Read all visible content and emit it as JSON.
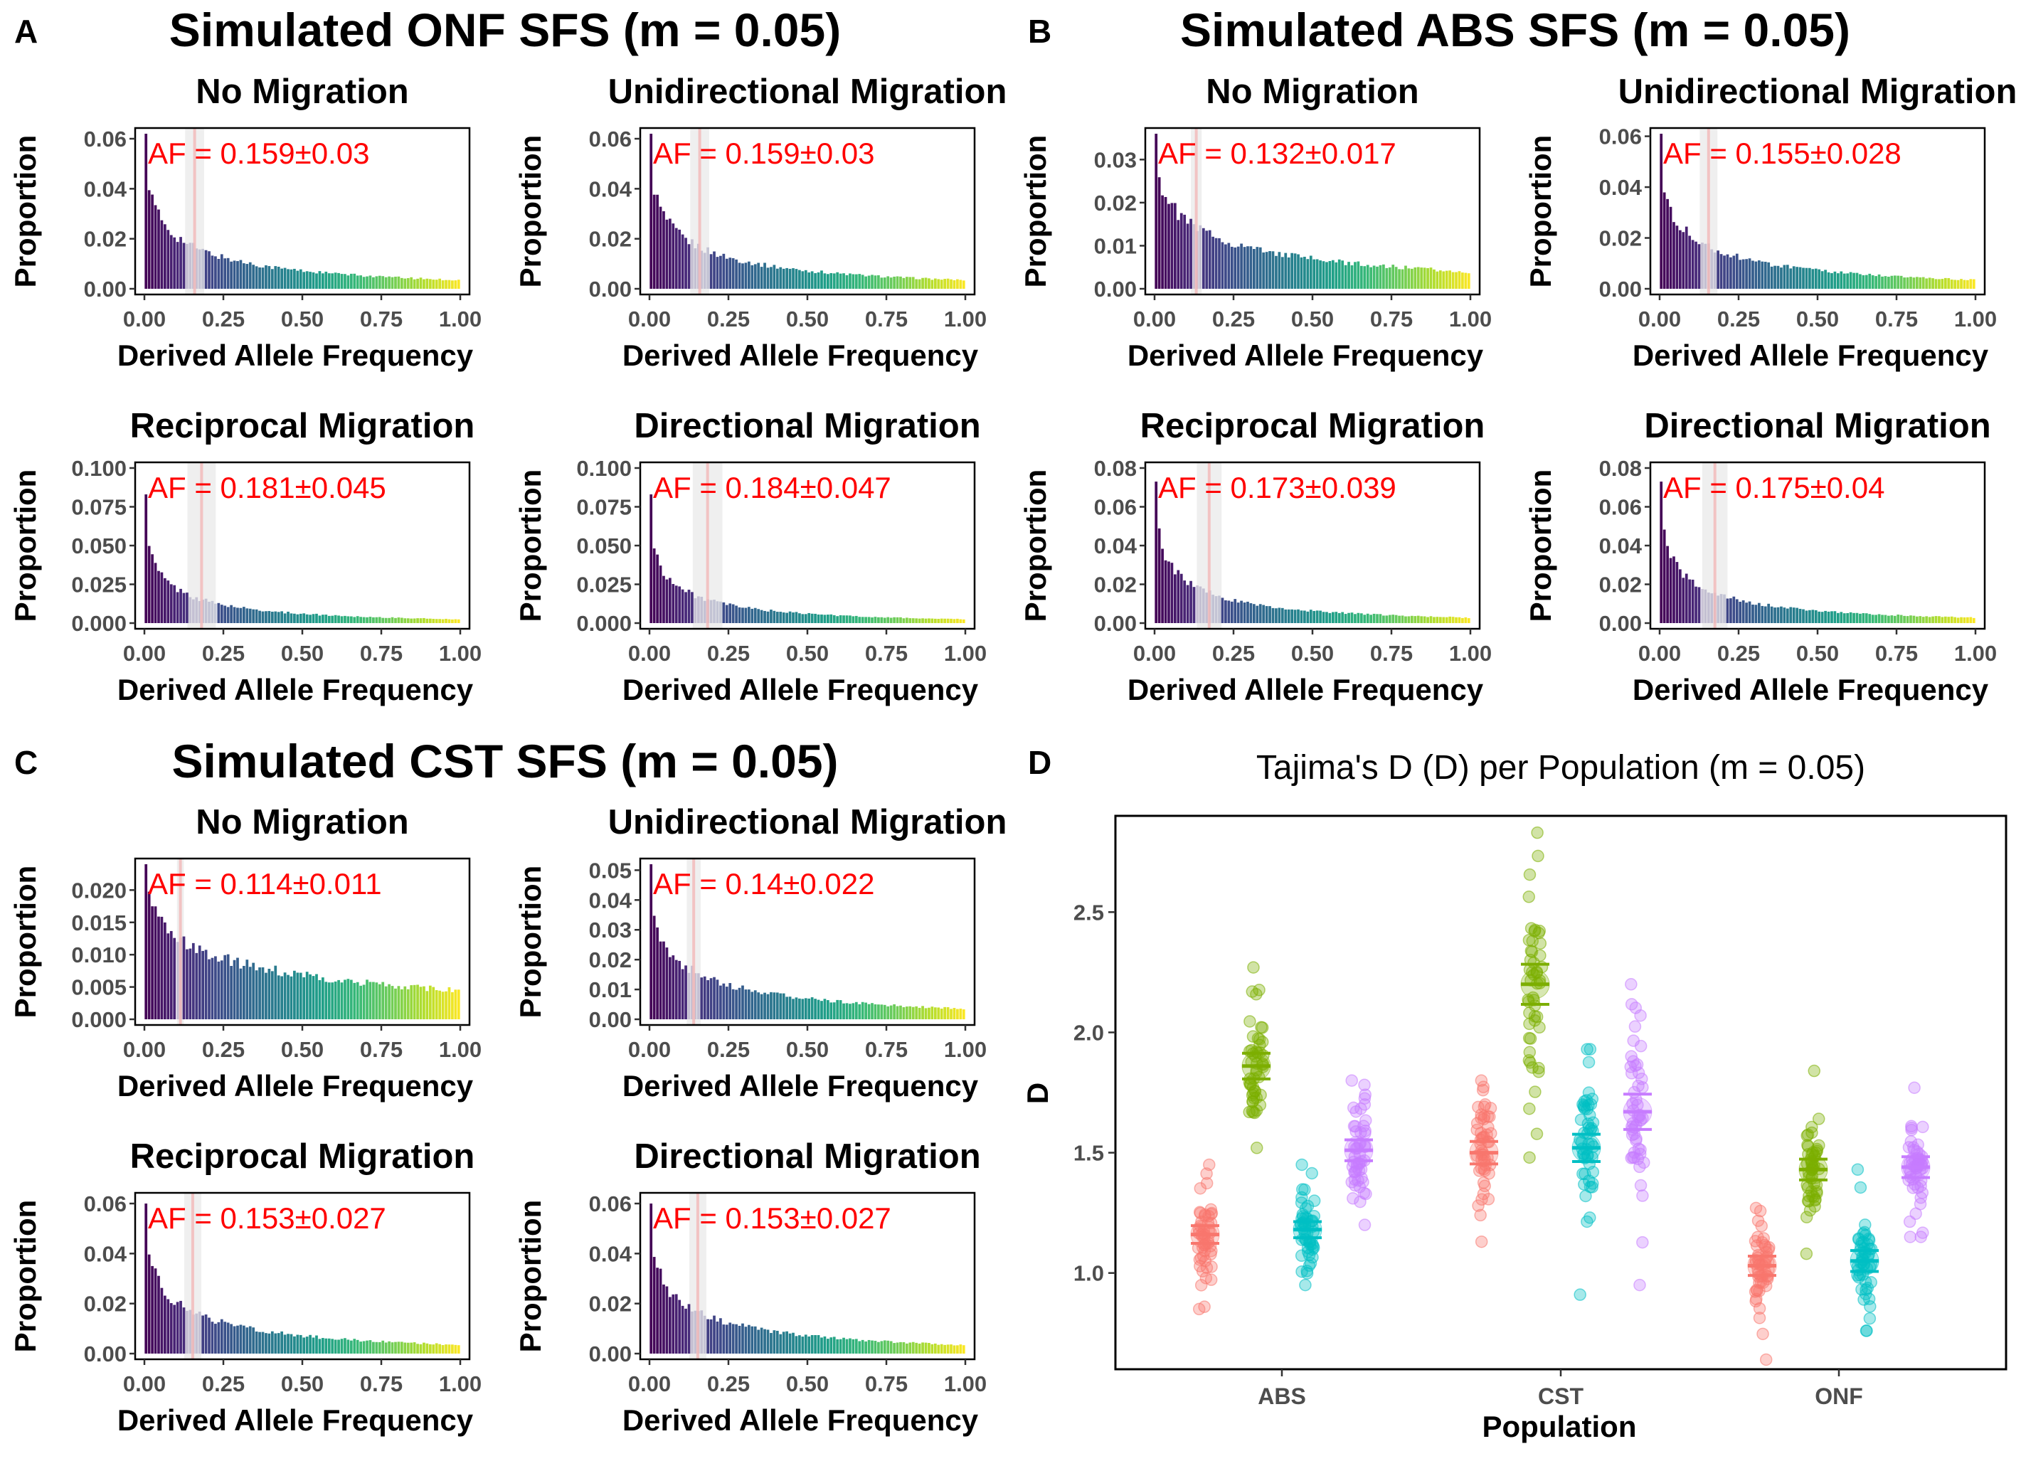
{
  "panel_labels": [
    "A",
    "B",
    "C",
    "D"
  ],
  "group_titles": {
    "A": "Simulated ONF SFS (m = 0.05)",
    "B": "Simulated ABS SFS (m = 0.05)",
    "C": "Simulated CST SFS (m = 0.05)"
  },
  "colors": {
    "annotation": "#ff0000",
    "viridis_start": "#440154",
    "viridis_end": "#fde725"
  },
  "chart_data": [
    {
      "type": "bar",
      "group": "A",
      "title": "No Migration",
      "xlabel": "Derived Allele Frequency",
      "ylabel": "Proportion",
      "xlim": [
        0,
        1
      ],
      "ylim": [
        0,
        0.062
      ],
      "xticks": [
        "0.00",
        "0.25",
        "0.50",
        "0.75",
        "1.00"
      ],
      "yticks": [
        "0.00",
        "0.02",
        "0.04",
        "0.06"
      ],
      "ytick_values": [
        0,
        0.02,
        0.04,
        0.06
      ],
      "annotation": "AF = 0.159±0.03",
      "af_mean": 0.159,
      "af_sd": 0.03,
      "first_value": 0.062,
      "last_value": 0.0035,
      "bins": 100
    },
    {
      "type": "bar",
      "group": "A",
      "title": "Unidirectional Migration",
      "xlabel": "Derived Allele Frequency",
      "ylabel": "Proportion",
      "xlim": [
        0,
        1
      ],
      "ylim": [
        0,
        0.062
      ],
      "xticks": [
        "0.00",
        "0.25",
        "0.50",
        "0.75",
        "1.00"
      ],
      "yticks": [
        "0.00",
        "0.02",
        "0.04",
        "0.06"
      ],
      "ytick_values": [
        0,
        0.02,
        0.04,
        0.06
      ],
      "annotation": "AF = 0.159±0.03",
      "af_mean": 0.159,
      "af_sd": 0.03,
      "first_value": 0.062,
      "last_value": 0.0035,
      "bins": 100
    },
    {
      "type": "bar",
      "group": "A",
      "title": "Reciprocal Migration",
      "xlabel": "Derived Allele Frequency",
      "ylabel": "Proportion",
      "xlim": [
        0,
        1
      ],
      "ylim": [
        0,
        0.1
      ],
      "xticks": [
        "0.00",
        "0.25",
        "0.50",
        "0.75",
        "1.00"
      ],
      "yticks": [
        "0.000",
        "0.025",
        "0.050",
        "0.075",
        "0.100"
      ],
      "ytick_values": [
        0,
        0.025,
        0.05,
        0.075,
        0.1
      ],
      "annotation": "AF = 0.181±0.045",
      "af_mean": 0.181,
      "af_sd": 0.045,
      "first_value": 0.083,
      "last_value": 0.0025,
      "bins": 100
    },
    {
      "type": "bar",
      "group": "A",
      "title": "Directional Migration",
      "xlabel": "Derived Allele Frequency",
      "ylabel": "Proportion",
      "xlim": [
        0,
        1
      ],
      "ylim": [
        0,
        0.1
      ],
      "xticks": [
        "0.00",
        "0.25",
        "0.50",
        "0.75",
        "1.00"
      ],
      "yticks": [
        "0.000",
        "0.025",
        "0.050",
        "0.075",
        "0.100"
      ],
      "ytick_values": [
        0,
        0.025,
        0.05,
        0.075,
        0.1
      ],
      "annotation": "AF = 0.184±0.047",
      "af_mean": 0.184,
      "af_sd": 0.047,
      "first_value": 0.083,
      "last_value": 0.0025,
      "bins": 100
    },
    {
      "type": "bar",
      "group": "B",
      "title": "No Migration",
      "xlabel": "Derived Allele Frequency",
      "ylabel": "Proportion",
      "xlim": [
        0,
        1
      ],
      "ylim": [
        0,
        0.036
      ],
      "xticks": [
        "0.00",
        "0.25",
        "0.50",
        "0.75",
        "1.00"
      ],
      "yticks": [
        "0.00",
        "0.01",
        "0.02",
        "0.03"
      ],
      "ytick_values": [
        0,
        0.01,
        0.02,
        0.03
      ],
      "annotation": "AF = 0.132±0.017",
      "af_mean": 0.132,
      "af_sd": 0.017,
      "first_value": 0.036,
      "last_value": 0.004,
      "bins": 100
    },
    {
      "type": "bar",
      "group": "B",
      "title": "Unidirectional Migration",
      "xlabel": "Derived Allele Frequency",
      "ylabel": "Proportion",
      "xlim": [
        0,
        1
      ],
      "ylim": [
        0,
        0.061
      ],
      "xticks": [
        "0.00",
        "0.25",
        "0.50",
        "0.75",
        "1.00"
      ],
      "yticks": [
        "0.00",
        "0.02",
        "0.04",
        "0.06"
      ],
      "ytick_values": [
        0,
        0.02,
        0.04,
        0.06
      ],
      "annotation": "AF = 0.155±0.028",
      "af_mean": 0.155,
      "af_sd": 0.028,
      "first_value": 0.061,
      "last_value": 0.0035,
      "bins": 100
    },
    {
      "type": "bar",
      "group": "B",
      "title": "Reciprocal Migration",
      "xlabel": "Derived Allele Frequency",
      "ylabel": "Proportion",
      "xlim": [
        0,
        1
      ],
      "ylim": [
        0,
        0.08
      ],
      "xticks": [
        "0.00",
        "0.25",
        "0.50",
        "0.75",
        "1.00"
      ],
      "yticks": [
        "0.00",
        "0.02",
        "0.04",
        "0.06",
        "0.08"
      ],
      "ytick_values": [
        0,
        0.02,
        0.04,
        0.06,
        0.08
      ],
      "annotation": "AF = 0.173±0.039",
      "af_mean": 0.173,
      "af_sd": 0.039,
      "first_value": 0.073,
      "last_value": 0.0028,
      "bins": 100
    },
    {
      "type": "bar",
      "group": "B",
      "title": "Directional Migration",
      "xlabel": "Derived Allele Frequency",
      "ylabel": "Proportion",
      "xlim": [
        0,
        1
      ],
      "ylim": [
        0,
        0.08
      ],
      "xticks": [
        "0.00",
        "0.25",
        "0.50",
        "0.75",
        "1.00"
      ],
      "yticks": [
        "0.00",
        "0.02",
        "0.04",
        "0.06",
        "0.08"
      ],
      "ytick_values": [
        0,
        0.02,
        0.04,
        0.06,
        0.08
      ],
      "annotation": "AF = 0.175±0.04",
      "af_mean": 0.175,
      "af_sd": 0.04,
      "first_value": 0.073,
      "last_value": 0.0028,
      "bins": 100
    },
    {
      "type": "bar",
      "group": "C",
      "title": "No Migration",
      "xlabel": "Derived Allele Frequency",
      "ylabel": "Proportion",
      "xlim": [
        0,
        1
      ],
      "ylim": [
        0,
        0.024
      ],
      "xticks": [
        "0.00",
        "0.25",
        "0.50",
        "0.75",
        "1.00"
      ],
      "yticks": [
        "0.000",
        "0.005",
        "0.010",
        "0.015",
        "0.020"
      ],
      "ytick_values": [
        0,
        0.005,
        0.01,
        0.015,
        0.02
      ],
      "annotation": "AF = 0.114±0.011",
      "af_mean": 0.114,
      "af_sd": 0.011,
      "first_value": 0.024,
      "last_value": 0.0045,
      "bins": 100
    },
    {
      "type": "bar",
      "group": "C",
      "title": "Unidirectional Migration",
      "xlabel": "Derived Allele Frequency",
      "ylabel": "Proportion",
      "xlim": [
        0,
        1
      ],
      "ylim": [
        0,
        0.052
      ],
      "xticks": [
        "0.00",
        "0.25",
        "0.50",
        "0.75",
        "1.00"
      ],
      "yticks": [
        "0.00",
        "0.01",
        "0.02",
        "0.03",
        "0.04",
        "0.05"
      ],
      "ytick_values": [
        0,
        0.01,
        0.02,
        0.03,
        0.04,
        0.05
      ],
      "annotation": "AF = 0.14±0.022",
      "af_mean": 0.14,
      "af_sd": 0.022,
      "first_value": 0.052,
      "last_value": 0.0035,
      "bins": 100
    },
    {
      "type": "bar",
      "group": "C",
      "title": "Reciprocal Migration",
      "xlabel": "Derived Allele Frequency",
      "ylabel": "Proportion",
      "xlim": [
        0,
        1
      ],
      "ylim": [
        0,
        0.062
      ],
      "xticks": [
        "0.00",
        "0.25",
        "0.50",
        "0.75",
        "1.00"
      ],
      "yticks": [
        "0.00",
        "0.02",
        "0.04",
        "0.06"
      ],
      "ytick_values": [
        0,
        0.02,
        0.04,
        0.06
      ],
      "annotation": "AF = 0.153±0.027",
      "af_mean": 0.153,
      "af_sd": 0.027,
      "first_value": 0.06,
      "last_value": 0.0035,
      "bins": 100
    },
    {
      "type": "bar",
      "group": "C",
      "title": "Directional Migration",
      "xlabel": "Derived Allele Frequency",
      "ylabel": "Proportion",
      "xlim": [
        0,
        1
      ],
      "ylim": [
        0,
        0.062
      ],
      "xticks": [
        "0.00",
        "0.25",
        "0.50",
        "0.75",
        "1.00"
      ],
      "yticks": [
        "0.00",
        "0.02",
        "0.04",
        "0.06"
      ],
      "ytick_values": [
        0,
        0.02,
        0.04,
        0.06
      ],
      "annotation": "AF = 0.153±0.027",
      "af_mean": 0.153,
      "af_sd": 0.027,
      "first_value": 0.06,
      "last_value": 0.0035,
      "bins": 100
    },
    {
      "type": "scatter",
      "group": "D",
      "title": "Tajima's D (D) per Population (m = 0.05)",
      "xlabel": "Population",
      "ylabel": "D",
      "categories": [
        "ABS",
        "CST",
        "ONF"
      ],
      "ylim": [
        0.6,
        2.9
      ],
      "yticks": [
        "1.0",
        "1.5",
        "2.0",
        "2.5"
      ],
      "ytick_values": [
        1.0,
        1.5,
        2.0,
        2.5
      ],
      "series_colors": [
        "#f8766d",
        "#7cae00",
        "#00bfc4",
        "#c77cff"
      ],
      "groups": [
        {
          "category": "ABS",
          "series_index": 0,
          "mean": 1.16,
          "sd": 0.11,
          "min": 0.85,
          "max": 1.45
        },
        {
          "category": "ABS",
          "series_index": 1,
          "mean": 1.86,
          "sd": 0.16,
          "min": 1.52,
          "max": 2.27
        },
        {
          "category": "ABS",
          "series_index": 2,
          "mean": 1.18,
          "sd": 0.1,
          "min": 0.95,
          "max": 1.45
        },
        {
          "category": "ABS",
          "series_index": 3,
          "mean": 1.51,
          "sd": 0.13,
          "min": 1.2,
          "max": 1.8
        },
        {
          "category": "CST",
          "series_index": 0,
          "mean": 1.5,
          "sd": 0.14,
          "min": 1.13,
          "max": 1.8
        },
        {
          "category": "CST",
          "series_index": 1,
          "mean": 2.2,
          "sd": 0.25,
          "min": 1.48,
          "max": 2.83
        },
        {
          "category": "CST",
          "series_index": 2,
          "mean": 1.52,
          "sd": 0.17,
          "min": 0.91,
          "max": 1.93
        },
        {
          "category": "CST",
          "series_index": 3,
          "mean": 1.67,
          "sd": 0.22,
          "min": 0.95,
          "max": 2.2
        },
        {
          "category": "ONF",
          "series_index": 0,
          "mean": 1.03,
          "sd": 0.12,
          "min": 0.64,
          "max": 1.27
        },
        {
          "category": "ONF",
          "series_index": 1,
          "mean": 1.43,
          "sd": 0.13,
          "min": 1.08,
          "max": 1.84
        },
        {
          "category": "ONF",
          "series_index": 2,
          "mean": 1.05,
          "sd": 0.13,
          "min": 0.76,
          "max": 1.43
        },
        {
          "category": "ONF",
          "series_index": 3,
          "mean": 1.44,
          "sd": 0.13,
          "min": 1.15,
          "max": 1.77
        }
      ]
    }
  ]
}
